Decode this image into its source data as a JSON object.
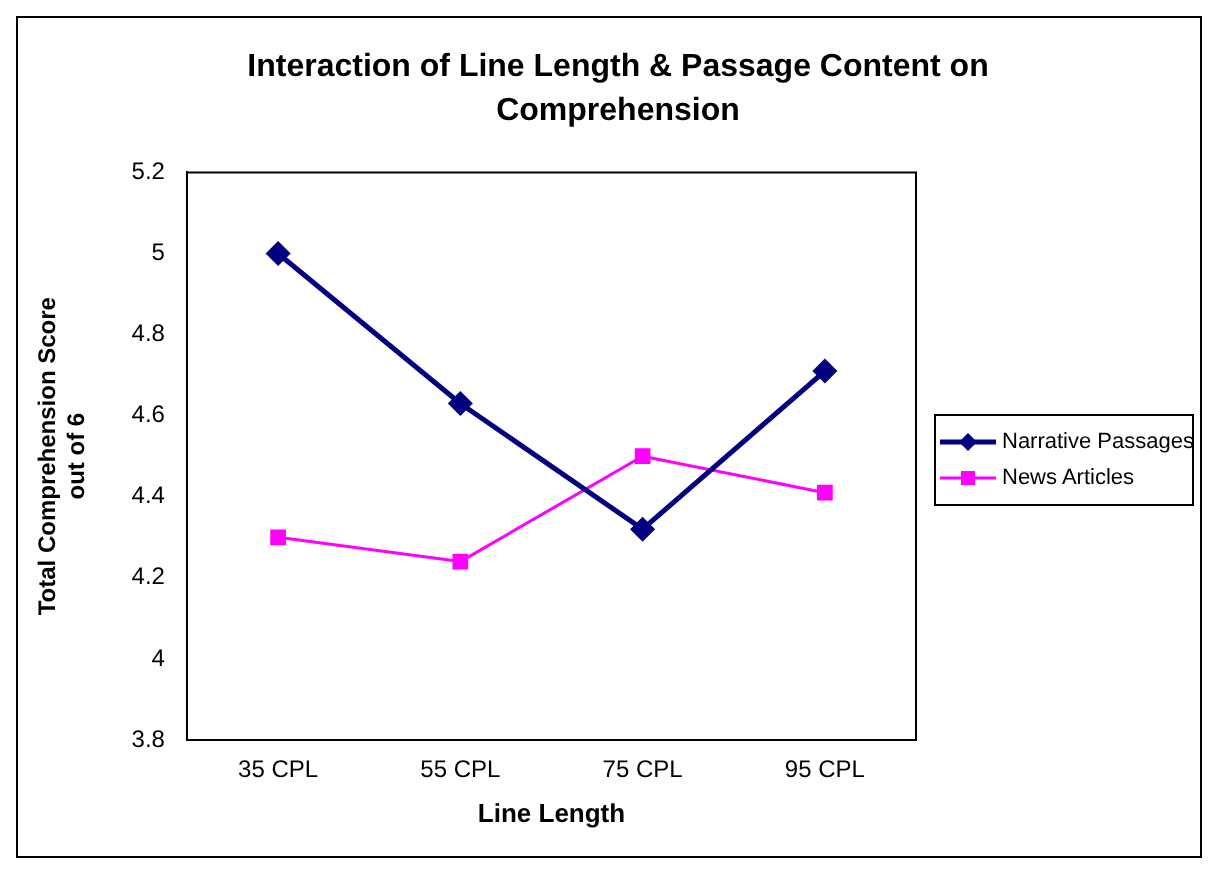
{
  "chart_data": {
    "type": "line",
    "title": "Interaction of Line Length & Passage Content on Comprehension",
    "xlabel": "Line Length",
    "ylabel": "Total Comprehension Score out of 6",
    "categories": [
      "35 CPL",
      "55 CPL",
      "75 CPL",
      "95 CPL"
    ],
    "series": [
      {
        "name": "Narrative Passages",
        "color": "#000080",
        "marker": "diamond",
        "values": [
          5.0,
          4.63,
          4.32,
          4.71
        ]
      },
      {
        "name": "News Articles",
        "color": "#ff00ff",
        "marker": "square",
        "values": [
          4.3,
          4.24,
          4.5,
          4.41
        ]
      }
    ],
    "ylim": [
      3.8,
      5.2
    ],
    "yticks": [
      3.8,
      4,
      4.2,
      4.4,
      4.6,
      4.8,
      5,
      5.2
    ],
    "grid": false,
    "legend": "right",
    "line_style": "solid"
  }
}
